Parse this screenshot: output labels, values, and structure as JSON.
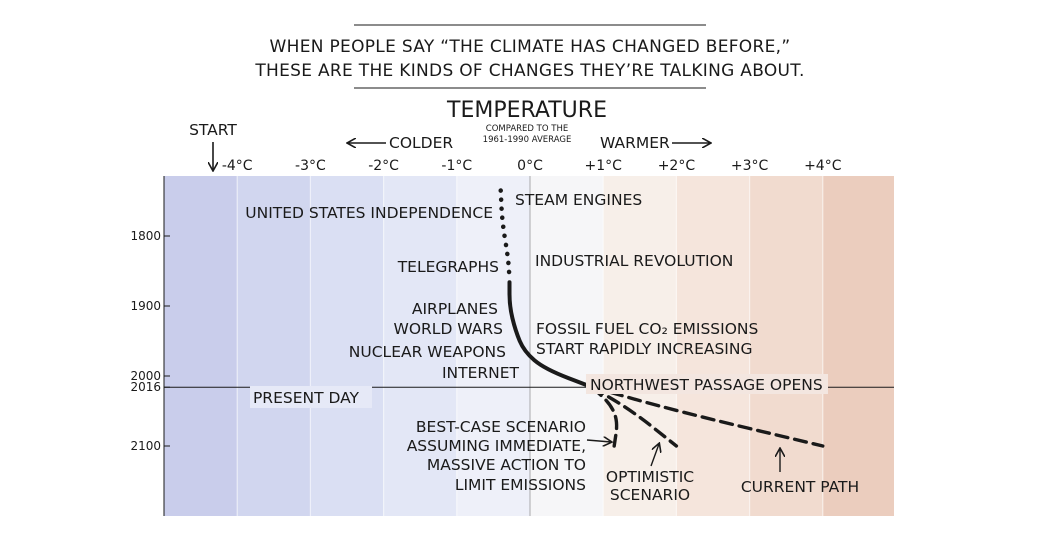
{
  "header": {
    "line1": "WHEN PEOPLE SAY “THE CLIMATE HAS CHANGED BEFORE,”",
    "line2": "THESE ARE THE KINDS OF CHANGES THEY’RE TALKING ABOUT."
  },
  "axis": {
    "title": "TEMPERATURE",
    "subtitle_line1": "COMPARED TO THE",
    "subtitle_line2": "1961-1990 AVERAGE",
    "colder": "COLDER",
    "warmer": "WARMER",
    "start": "START"
  },
  "chart_data": {
    "type": "line",
    "title": "TEMPERATURE",
    "xlabel": "COMPARED TO THE 1961-1990 AVERAGE",
    "x_ticks": [
      {
        "value": -4,
        "label": "-4°C"
      },
      {
        "value": -3,
        "label": "-3°C"
      },
      {
        "value": -2,
        "label": "-2°C"
      },
      {
        "value": -1,
        "label": "-1°C"
      },
      {
        "value": 0,
        "label": "0°C"
      },
      {
        "value": 1,
        "label": "+1°C"
      },
      {
        "value": 2,
        "label": "+2°C"
      },
      {
        "value": 3,
        "label": "+3°C"
      },
      {
        "value": 4,
        "label": "+4°C"
      }
    ],
    "y_ticks": [
      {
        "value": 1800,
        "label": "1800"
      },
      {
        "value": 1900,
        "label": "1900"
      },
      {
        "value": 2000,
        "label": "2000"
      },
      {
        "value": 2016,
        "label": "2016"
      },
      {
        "value": 2100,
        "label": "2100"
      }
    ],
    "xlim": [
      -5,
      5
    ],
    "ylim": [
      1735,
      2190
    ],
    "background": "temperature color bands from blue (cold) to red (warm)",
    "series": [
      {
        "style": "dotted",
        "points": [
          [
            -0.4,
            1735
          ],
          [
            -0.38,
            1780
          ],
          [
            -0.3,
            1830
          ],
          [
            -0.28,
            1860
          ]
        ]
      },
      {
        "style": "solid",
        "points": [
          [
            -0.28,
            1866
          ],
          [
            -0.28,
            1900
          ],
          [
            -0.2,
            1935
          ],
          [
            -0.08,
            1965
          ],
          [
            0.2,
            1990
          ],
          [
            0.85,
            2016
          ]
        ]
      },
      {
        "style": "dashed",
        "points": [
          [
            0.85,
            2016
          ],
          [
            1.1,
            2040
          ],
          [
            1.2,
            2065
          ],
          [
            1.15,
            2100
          ]
        ]
      },
      {
        "style": "dashed",
        "points": [
          [
            0.85,
            2016
          ],
          [
            1.4,
            2050
          ],
          [
            2.0,
            2100
          ]
        ]
      },
      {
        "style": "dashed",
        "points": [
          [
            0.85,
            2016
          ],
          [
            2.0,
            2050
          ],
          [
            4.0,
            2100
          ]
        ]
      }
    ],
    "reference_lines": [
      {
        "year": 2016,
        "label": "PRESENT DAY"
      }
    ],
    "annotations": [
      {
        "text": "UNITED STATES INDEPENDENCE"
      },
      {
        "text": "STEAM ENGINES"
      },
      {
        "text": "TELEGRAPHS"
      },
      {
        "text": "INDUSTRIAL REVOLUTION"
      },
      {
        "text": "AIRPLANES"
      },
      {
        "text": "WORLD WARS"
      },
      {
        "text": "NUCLEAR WEAPONS"
      },
      {
        "text": "INTERNET"
      },
      {
        "text": "FOSSIL FUEL CO₂ EMISSIONS"
      },
      {
        "text": "START RAPIDLY INCREASING"
      },
      {
        "text": "NORTHWEST PASSAGE OPENS"
      },
      {
        "text": "BEST-CASE SCENARIO"
      },
      {
        "text": "ASSUMING IMMEDIATE,"
      },
      {
        "text": "MASSIVE ACTION TO"
      },
      {
        "text": "LIMIT EMISSIONS"
      },
      {
        "text": "OPTIMISTIC"
      },
      {
        "text": "SCENARIO"
      },
      {
        "text": "CURRENT PATH"
      }
    ]
  }
}
